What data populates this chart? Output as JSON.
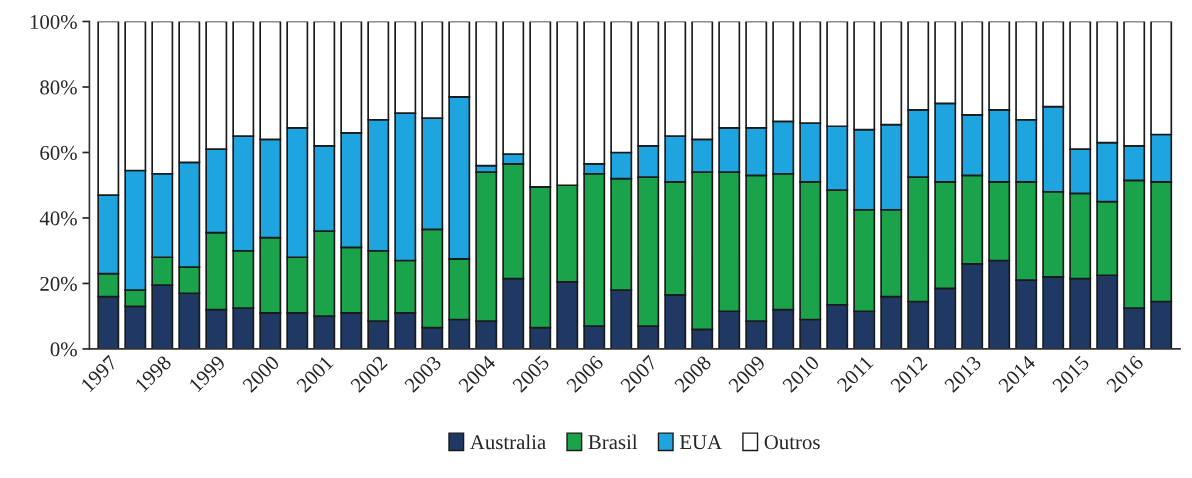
{
  "chart_data": {
    "type": "bar",
    "stacked": true,
    "categories": [
      "1997",
      null,
      "1998",
      null,
      "1999",
      null,
      "2000",
      null,
      "2001",
      null,
      "2002",
      null,
      "2003",
      null,
      "2004",
      null,
      "2005",
      null,
      "2006",
      null,
      "2007",
      null,
      "2008",
      null,
      "2009",
      null,
      "2010",
      null,
      "2011",
      null,
      "2012",
      null,
      "2013",
      null,
      "2014",
      null,
      "2015",
      null,
      "2016",
      null
    ],
    "series": [
      {
        "name": "Australia",
        "color": "#1f3864",
        "values": [
          16,
          13,
          19.5,
          17,
          12,
          12.5,
          11,
          11,
          10,
          11,
          8.5,
          11,
          6.5,
          9,
          8.5,
          21.5,
          6.5,
          20.5,
          7,
          18,
          7,
          16.5,
          6,
          11.5,
          8.5,
          12,
          9,
          13.5,
          11.5,
          16,
          14.5,
          18.5,
          26,
          27,
          21,
          22,
          21.5,
          22.5,
          12.5,
          14.5
        ]
      },
      {
        "name": "Brasil",
        "color": "#1aa34a",
        "values": [
          7,
          5,
          8.5,
          8,
          23.5,
          17.5,
          23,
          17,
          26,
          20,
          21.5,
          16,
          30,
          18.5,
          45.5,
          35,
          43,
          29.5,
          46.5,
          34,
          45.5,
          34.5,
          48,
          42.5,
          44.5,
          41.5,
          42,
          35,
          31,
          26.5,
          38,
          32.5,
          27,
          24,
          30,
          26,
          26,
          22.5,
          39,
          36.5
        ]
      },
      {
        "name": "EUA",
        "color": "#1ea5e0",
        "values": [
          24,
          36.5,
          25.5,
          32,
          25.5,
          35,
          30,
          39.5,
          26,
          35,
          40,
          45,
          34,
          49.5,
          2,
          3,
          0,
          0,
          3,
          8,
          9.5,
          14,
          10,
          13.5,
          14.5,
          16,
          18,
          19.5,
          24.5,
          26,
          20.5,
          24,
          18.5,
          22,
          19,
          26,
          13.5,
          18,
          10.5,
          14.5
        ]
      },
      {
        "name": "Outros",
        "color": "#ffffff",
        "values": [
          53,
          45.5,
          46.5,
          43,
          39,
          35,
          36,
          32.5,
          38,
          34,
          30,
          28,
          29.5,
          23,
          44,
          40.5,
          50.5,
          50,
          43.5,
          40,
          38,
          35,
          36,
          32.5,
          32.5,
          30.5,
          31,
          32,
          33,
          31.5,
          27,
          25,
          28.5,
          27,
          30,
          26,
          39,
          37,
          38,
          34.5
        ]
      }
    ],
    "ylim": [
      0,
      100
    ],
    "yticks": [
      {
        "value": 0,
        "label": "0%"
      },
      {
        "value": 20,
        "label": "20%"
      },
      {
        "value": 40,
        "label": "40%"
      },
      {
        "value": 60,
        "label": "60%"
      },
      {
        "value": 80,
        "label": "80%"
      },
      {
        "value": 100,
        "label": "100%"
      }
    ],
    "grid": false,
    "legend": "bottom"
  }
}
